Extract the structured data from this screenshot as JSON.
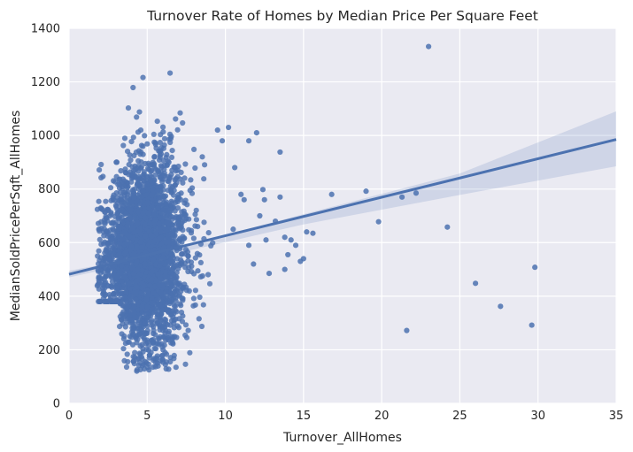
{
  "chart_data": {
    "type": "scatter",
    "title": "Turnover Rate of Homes by Median Price Per Square Feet",
    "xlabel": "Turnover_AllHomes",
    "ylabel": "MedianSoldPricePerSqft_AllHomes",
    "xlim": [
      0,
      35
    ],
    "ylim": [
      0,
      1400
    ],
    "xticks": [
      0,
      5,
      10,
      15,
      20,
      25,
      30,
      35
    ],
    "yticks": [
      0,
      200,
      400,
      600,
      800,
      1000,
      1200,
      1400
    ],
    "xtick_labels": [
      "0",
      "5",
      "10",
      "15",
      "20",
      "25",
      "30",
      "35"
    ],
    "ytick_labels": [
      "0",
      "200",
      "400",
      "600",
      "800",
      "1000",
      "1200",
      "1400"
    ],
    "grid": true,
    "legend": "none",
    "background_color": "#eaeaf2",
    "grid_color": "#ffffff",
    "point_color": "#4c72b0",
    "regression": {
      "points": [
        [
          0,
          482
        ],
        [
          35,
          985
        ]
      ],
      "ci_low": [
        [
          0,
          470
        ],
        [
          5,
          535
        ],
        [
          15,
          668
        ],
        [
          25,
          778
        ],
        [
          35,
          885
        ]
      ],
      "ci_high": [
        [
          0,
          495
        ],
        [
          5,
          550
        ],
        [
          15,
          706
        ],
        [
          25,
          858
        ],
        [
          35,
          1090
        ]
      ]
    },
    "cluster": {
      "x_center": 4.8,
      "x_spread": 1.3,
      "y_center": 555,
      "y_spread": 170,
      "approx_count": 3000
    },
    "outliers": [
      [
        23.0,
        1332
      ],
      [
        13.5,
        938
      ],
      [
        19.0,
        792
      ],
      [
        21.3,
        770
      ],
      [
        22.2,
        785
      ],
      [
        16.8,
        780
      ],
      [
        19.8,
        678
      ],
      [
        24.2,
        658
      ],
      [
        29.8,
        508
      ],
      [
        26.0,
        448
      ],
      [
        27.6,
        362
      ],
      [
        29.6,
        292
      ],
      [
        21.6,
        272
      ],
      [
        15.6,
        635
      ],
      [
        15.2,
        640
      ],
      [
        14.0,
        555
      ],
      [
        14.8,
        530
      ],
      [
        13.8,
        500
      ],
      [
        12.8,
        485
      ],
      [
        11.5,
        590
      ],
      [
        12.2,
        700
      ],
      [
        13.2,
        680
      ],
      [
        12.5,
        760
      ],
      [
        11.0,
        780
      ],
      [
        10.5,
        650
      ],
      [
        11.8,
        520
      ],
      [
        13.5,
        770
      ],
      [
        12.0,
        1010
      ],
      [
        11.5,
        980
      ],
      [
        10.2,
        1030
      ],
      [
        9.5,
        1020
      ],
      [
        9.8,
        980
      ],
      [
        10.6,
        880
      ],
      [
        11.2,
        760
      ],
      [
        14.5,
        590
      ],
      [
        13.8,
        620
      ],
      [
        15.0,
        540
      ],
      [
        14.2,
        610
      ],
      [
        12.6,
        610
      ],
      [
        12.4,
        798
      ]
    ]
  }
}
